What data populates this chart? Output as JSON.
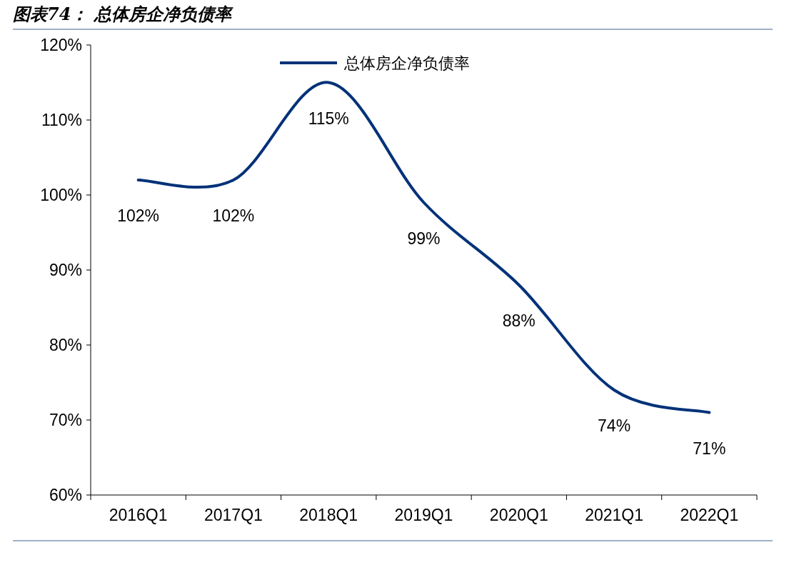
{
  "chart_data": {
    "type": "line",
    "title": "图表74：  总体房企净负债率",
    "categories": [
      "2016Q1",
      "2017Q1",
      "2018Q1",
      "2019Q1",
      "2020Q1",
      "2021Q1",
      "2022Q1"
    ],
    "series": [
      {
        "name": "总体房企净负债率",
        "color": "#003278",
        "values": [
          102,
          102,
          115,
          99,
          88,
          74,
          71
        ]
      }
    ],
    "value_labels": [
      "102%",
      "102%",
      "115%",
      "99%",
      "88%",
      "74%",
      "71%"
    ],
    "ylim": [
      60,
      120
    ],
    "yticks": [
      {
        "value": 60,
        "label": "60%"
      },
      {
        "value": 70,
        "label": "70%"
      },
      {
        "value": 80,
        "label": "80%"
      },
      {
        "value": 90,
        "label": "90%"
      },
      {
        "value": 100,
        "label": "100%"
      },
      {
        "value": 110,
        "label": "110%"
      },
      {
        "value": 120,
        "label": "120%"
      }
    ],
    "grid": false,
    "legend": "top",
    "marker": "none",
    "line_style": "solid"
  }
}
